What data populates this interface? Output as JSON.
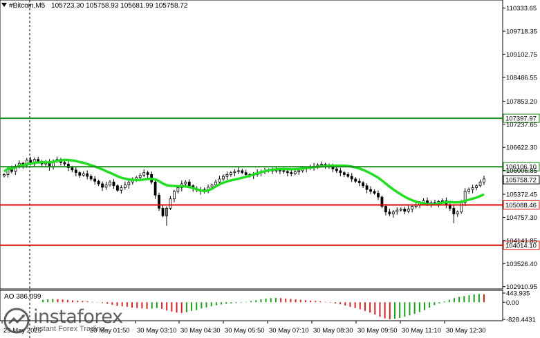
{
  "header": {
    "symbol": "#Bitcoin,M5",
    "ohlc": "105723.30 105758.93 105681.99 105758.72"
  },
  "price_axis": {
    "ticks": [
      "110333.65",
      "109718.35",
      "109102.75",
      "108486.55",
      "107853.20",
      "107237.65",
      "106622.30",
      "106006.85",
      "105372.45",
      "104757.30",
      "104141.85",
      "103526.40",
      "102910.95"
    ],
    "range": [
      102850,
      110550
    ]
  },
  "levels": [
    {
      "price": "107397.97",
      "color": "#1a8a1a"
    },
    {
      "price": "106106.10",
      "color": "#1a8a1a"
    },
    {
      "price": "105088.46",
      "color": "#e00000"
    },
    {
      "price": "104014.10",
      "color": "#e00000"
    }
  ],
  "current_price": "105758.72",
  "time_axis": {
    "labels": [
      "29 May 2025",
      "30 May 03:10",
      "30 May 04:30",
      "30 May 05:50",
      "30 May 07:10",
      "30 May 08:30",
      "30 May 09:50",
      "30 May 11:10",
      "30 May 12:30"
    ],
    "hidden_label": "30 May 01:50"
  },
  "oscillator": {
    "label": "AO 386.099",
    "ticks": [
      "443.935",
      "0.00",
      "-828.4431"
    ]
  },
  "watermark": {
    "brand": "instaforex",
    "tagline": "Instant Forex Trading"
  },
  "colors": {
    "ma": "#22dd22",
    "ao_up": "#1aa01a",
    "ao_down": "#d62020",
    "axis": "#000000"
  },
  "chart_data": {
    "type": "candlestick",
    "series": [
      {
        "name": "price",
        "values": [
          105900,
          106050,
          105980,
          106120,
          106200,
          106150,
          106280,
          106180,
          106300,
          106250,
          106180,
          106220,
          106100,
          106250,
          106300,
          106220,
          106180,
          106080,
          106020,
          105950,
          105880,
          105920,
          105850,
          105780,
          105720,
          105650,
          105560,
          105620,
          105700,
          105600,
          105480,
          105550,
          105620,
          105700,
          105750,
          105820,
          105880,
          105950,
          105900,
          105700,
          105350,
          105000,
          104800,
          105000,
          105250,
          105450,
          105550,
          105650,
          105700,
          105600,
          105520,
          105480,
          105450,
          105500,
          105560,
          105620,
          105700,
          105780,
          105850,
          105900,
          105950,
          105980,
          106000,
          105950,
          105900,
          105870,
          105900,
          105950,
          105980,
          106000,
          106020,
          105990,
          106010,
          106000,
          105980,
          105950,
          105920,
          105970,
          106000,
          106050,
          106080,
          106100,
          106120,
          106150,
          106170,
          106130,
          106100,
          106050,
          106000,
          105950,
          105900,
          105850,
          105780,
          105720,
          105680,
          105600,
          105500,
          105450,
          105400,
          105300,
          105050,
          104900,
          104850,
          104900,
          104950,
          104980,
          104920,
          104980,
          105050,
          105100,
          105150,
          105200,
          105100,
          105150,
          105120,
          105180,
          105200,
          105100,
          105000,
          104850,
          104900,
          105150,
          105450,
          105500,
          105550,
          105600,
          105700,
          105780
        ]
      }
    ],
    "ao_values": [
      120,
      140,
      160,
      150,
      130,
      110,
      90,
      70,
      60,
      40,
      20,
      -10,
      -40,
      -80,
      -120,
      -180,
      -200,
      -220,
      -260,
      -280,
      -300,
      -320,
      -310,
      -280,
      -320,
      -400,
      -450,
      -500,
      -520,
      -480,
      -420,
      -380,
      -300,
      -250,
      -200,
      -150,
      -110,
      -80,
      -60,
      -40,
      -20,
      20,
      60,
      100,
      140,
      180,
      200,
      210,
      200,
      180,
      160,
      140,
      120,
      100,
      80,
      60,
      40,
      20,
      -20,
      -60,
      -100,
      -160,
      -220,
      -280,
      -340,
      -420,
      -500,
      -600,
      -700,
      -780,
      -820,
      -800,
      -760,
      -700,
      -640,
      -560,
      -480,
      -380,
      -260,
      -140,
      -60,
      40,
      120,
      200,
      260,
      300,
      340,
      380,
      400,
      386
    ]
  }
}
